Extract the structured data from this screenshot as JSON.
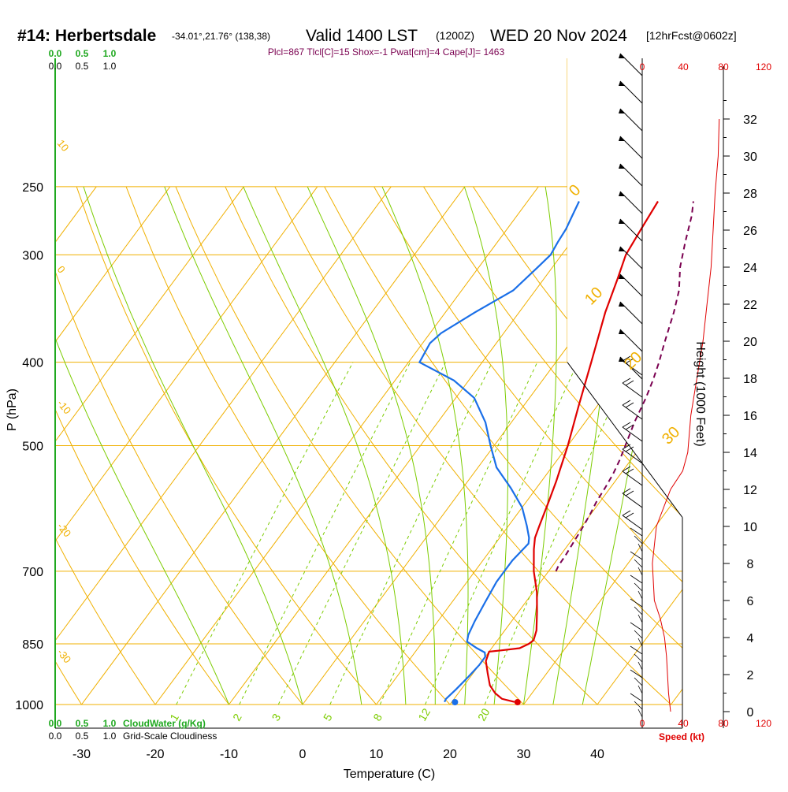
{
  "header": {
    "station": "#14: Herbertsdale",
    "coords": "-34.01°,21.76° (138,38)",
    "valid": "Valid 1400 LST",
    "zulu": "(1200Z)",
    "date": "WED 20 Nov 2024",
    "fcst": "[12hrFcst@0602z]"
  },
  "params_line": "Plcl=867 Tlcl[C]=15 Shox=-1 Pwat[cm]=4 Cape[J]= 1463",
  "colors": {
    "isotherm": "#f0b000",
    "dry_adiabat": "#f0b000",
    "moist_adiabat": "#7ccc00",
    "mixing_ratio": "#7ccc00",
    "temperature": "#e00000",
    "dewpoint": "#1a6fe8",
    "parcel": "#7a0050",
    "cloud_green": "#1fa81f",
    "speed_red": "#e00000"
  },
  "scales": {
    "cloudwater_ticks": [
      "0.0",
      "0.5",
      "1.0"
    ],
    "cloudiness_ticks": [
      "0.0",
      "0.5",
      "1.0"
    ],
    "cloudwater_label": "CloudWater (g/Kg)",
    "cloudiness_label": "Grid-Scale Cloudiness",
    "speed_ticks": [
      "0",
      "40",
      "80",
      "120"
    ],
    "speed_label": "Speed (kt)",
    "height_label": "Height (1000 Feet)",
    "height_ticks": [
      "0",
      "2",
      "4",
      "6",
      "8",
      "10",
      "12",
      "14",
      "16",
      "18",
      "20",
      "22",
      "24",
      "26",
      "28",
      "30",
      "32"
    ],
    "pressure_label": "P (hPa)",
    "pressure_ticks": [
      "250",
      "300",
      "400",
      "500",
      "700",
      "850",
      "1000"
    ],
    "temp_label": "Temperature (C)",
    "temp_ticks": [
      "-30",
      "-20",
      "-10",
      "0",
      "10",
      "20",
      "30",
      "40"
    ],
    "mixing_labels": [
      "1",
      "2",
      "3",
      "5",
      "8",
      "12",
      "20"
    ],
    "isotherm_side_labels": [
      "10",
      "0",
      "-10",
      "-20",
      "-30"
    ],
    "dry_adiabat_labels": [
      "0",
      "10",
      "20",
      "30"
    ]
  },
  "chart_data": {
    "type": "skew-t",
    "title": "#14: Herbertsdale  Valid 1400 LST (1200Z) WED 20 Nov 2024",
    "xlabel": "Temperature (C)",
    "ylabel": "P (hPa)",
    "x_range": [
      -34,
      46
    ],
    "p_range": [
      250,
      1000
    ],
    "series": [
      {
        "name": "temperature",
        "points": [
          [
            993,
            28.5
          ],
          [
            985,
            26.5
          ],
          [
            970,
            25.0
          ],
          [
            950,
            23.5
          ],
          [
            920,
            22.0
          ],
          [
            890,
            20.5
          ],
          [
            868,
            20.0
          ],
          [
            865,
            21.5
          ],
          [
            860,
            23.8
          ],
          [
            850,
            24.6
          ],
          [
            842,
            24.9
          ],
          [
            820,
            24.3
          ],
          [
            780,
            22.5
          ],
          [
            740,
            20.5
          ],
          [
            700,
            18.0
          ],
          [
            660,
            15.8
          ],
          [
            640,
            14.8
          ],
          [
            620,
            14.2
          ],
          [
            580,
            13.0
          ],
          [
            550,
            12.0
          ],
          [
            500,
            10.0
          ],
          [
            450,
            7.5
          ],
          [
            400,
            4.8
          ],
          [
            350,
            1.7
          ],
          [
            320,
            0.0
          ],
          [
            300,
            -1.3
          ],
          [
            280,
            -1.8
          ],
          [
            260,
            -2.3
          ]
        ]
      },
      {
        "name": "dewpoint",
        "points": [
          [
            993,
            19.0
          ],
          [
            985,
            18.9
          ],
          [
            960,
            19.3
          ],
          [
            930,
            19.7
          ],
          [
            900,
            20.0
          ],
          [
            880,
            20.0
          ],
          [
            870,
            19.5
          ],
          [
            860,
            18.0
          ],
          [
            845,
            16.0
          ],
          [
            830,
            15.5
          ],
          [
            800,
            15.0
          ],
          [
            760,
            14.5
          ],
          [
            720,
            14.0
          ],
          [
            680,
            14.0
          ],
          [
            650,
            14.5
          ],
          [
            640,
            14.0
          ],
          [
            620,
            12.5
          ],
          [
            590,
            10.0
          ],
          [
            560,
            6.5
          ],
          [
            530,
            2.5
          ],
          [
            500,
            -0.5
          ],
          [
            470,
            -3.5
          ],
          [
            440,
            -7.5
          ],
          [
            420,
            -12.0
          ],
          [
            400,
            -18.5
          ],
          [
            380,
            -19.0
          ],
          [
            370,
            -18.5
          ],
          [
            350,
            -16.0
          ],
          [
            330,
            -13.0
          ],
          [
            310,
            -12.0
          ],
          [
            300,
            -11.5
          ],
          [
            290,
            -11.8
          ],
          [
            280,
            -12.0
          ],
          [
            270,
            -12.5
          ],
          [
            260,
            -13.0
          ]
        ]
      },
      {
        "name": "parcel",
        "points": [
          [
            700,
            21.0
          ],
          [
            690,
            20.8
          ],
          [
            670,
            20.7
          ],
          [
            650,
            20.5
          ],
          [
            620,
            20.2
          ],
          [
            600,
            19.9
          ],
          [
            580,
            19.5
          ],
          [
            560,
            19.3
          ],
          [
            540,
            19.0
          ],
          [
            520,
            18.5
          ],
          [
            500,
            17.8
          ],
          [
            470,
            16.7
          ],
          [
            440,
            15.8
          ],
          [
            420,
            15.0
          ],
          [
            400,
            14.0
          ],
          [
            380,
            12.8
          ],
          [
            350,
            11.0
          ],
          [
            330,
            9.5
          ],
          [
            310,
            7.3
          ],
          [
            290,
            5.5
          ],
          [
            270,
            3.7
          ],
          [
            260,
            2.5
          ]
        ]
      }
    ],
    "surface_points": {
      "temperature": 29.5,
      "dewpoint": 21.0
    },
    "height_profile_kft": {
      "description": "right-side height (1000 ft) axis"
    },
    "wind_speed_kt": [
      [
        0,
        28
      ],
      [
        1,
        26
      ],
      [
        2,
        25
      ],
      [
        3,
        24
      ],
      [
        4,
        22
      ],
      [
        5,
        18
      ],
      [
        6,
        12
      ],
      [
        8,
        10
      ],
      [
        10,
        14
      ],
      [
        12,
        28
      ],
      [
        13,
        40
      ],
      [
        14,
        45
      ],
      [
        16,
        48
      ],
      [
        18,
        54
      ],
      [
        20,
        60
      ],
      [
        22,
        64
      ],
      [
        24,
        68
      ],
      [
        26,
        70
      ],
      [
        28,
        72
      ],
      [
        30,
        75
      ],
      [
        32,
        76
      ]
    ]
  }
}
